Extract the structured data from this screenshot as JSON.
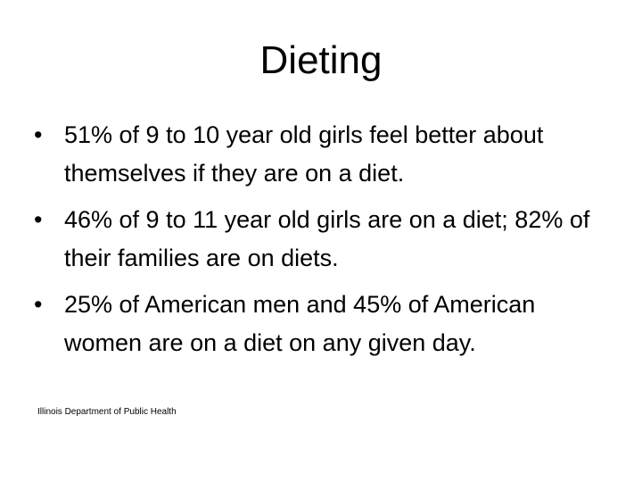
{
  "header": {
    "title": "Dieting"
  },
  "bullets": [
    "51% of 9 to 10 year old girls feel better about themselves if they are on a diet.",
    "46% of 9 to 11 year old girls are on a diet; 82% of their families are on diets.",
    "25% of American men and 45% of American women are on a diet on any given day."
  ],
  "source": "Illinois Department of Public Health"
}
